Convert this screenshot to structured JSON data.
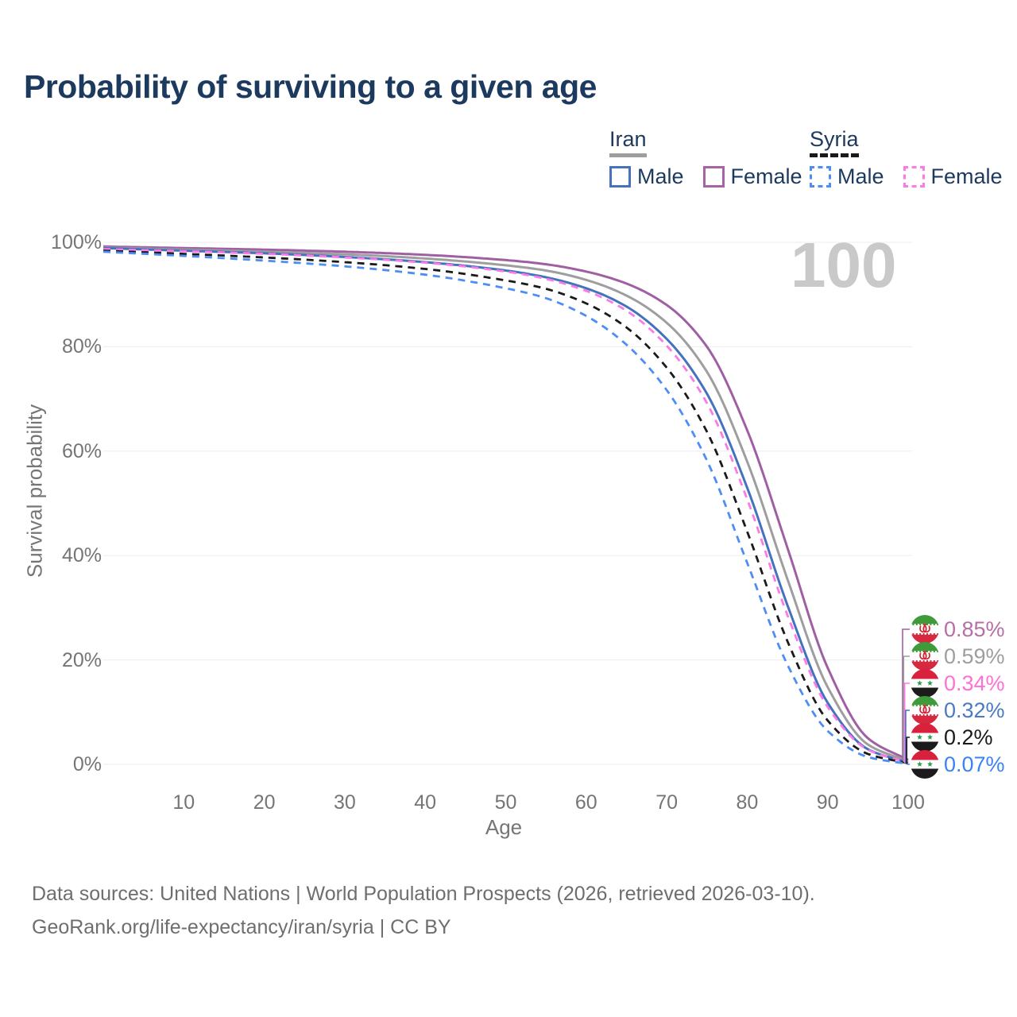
{
  "title": "Probability of surviving to a given age",
  "age_counter": {
    "text": "100"
  },
  "legend": {
    "groups": [
      {
        "label": "Iran",
        "line_color": "#9e9e9e",
        "line_style": "solid",
        "items": [
          {
            "label": "Male",
            "color": "#4472bc",
            "style": "solid"
          },
          {
            "label": "Female",
            "color": "#a763a6",
            "style": "solid"
          }
        ]
      },
      {
        "label": "Syria",
        "line_color": "#1a1a1a",
        "line_style": "dashed",
        "items": [
          {
            "label": "Male",
            "color": "#4d8df5",
            "style": "dashed"
          },
          {
            "label": "Female",
            "color": "#fc7ae6",
            "style": "dashed"
          }
        ]
      }
    ]
  },
  "axes": {
    "x_label": "Age",
    "y_label": "Survival probability",
    "x_ticks": [
      10,
      20,
      30,
      40,
      50,
      60,
      70,
      80,
      90,
      100
    ],
    "y_ticks": [
      "0%",
      "20%",
      "40%",
      "60%",
      "80%",
      "100%"
    ],
    "grid": "horizontal-only"
  },
  "chart_data": {
    "type": "line",
    "title": "Probability of surviving to a given age",
    "xlabel": "Age",
    "ylabel": "Survival probability",
    "xlim": [
      0,
      100
    ],
    "ylim": [
      0,
      100
    ],
    "legend_position": "top-right",
    "x": [
      0,
      10,
      20,
      30,
      40,
      50,
      55,
      60,
      65,
      70,
      75,
      80,
      85,
      90,
      95,
      100
    ],
    "series": [
      {
        "id": "iran-female",
        "name": "Iran Female",
        "country": "Iran",
        "sex": "Female",
        "style": "solid",
        "color": "#a05fa2",
        "label_color": "#b76ea6",
        "flag": "iran",
        "end_label": "0.85%",
        "values": [
          99.2,
          98.9,
          98.6,
          98.2,
          97.6,
          96.6,
          95.8,
          94.4,
          92.1,
          88.0,
          80.0,
          64.0,
          41.5,
          18.5,
          5.0,
          0.85
        ]
      },
      {
        "id": "iran-total",
        "name": "Iran",
        "country": "Iran",
        "sex": "Both",
        "style": "solid",
        "color": "#9e9e9e",
        "label_color": "#9e9e9e",
        "flag": "iran",
        "end_label": "0.59%",
        "values": [
          99.0,
          98.6,
          98.2,
          97.7,
          96.9,
          95.6,
          94.6,
          92.8,
          89.8,
          84.6,
          75.2,
          58.0,
          35.5,
          14.8,
          3.8,
          0.59
        ]
      },
      {
        "id": "syria-female",
        "name": "Syria Female",
        "country": "Syria",
        "sex": "Female",
        "style": "dashed",
        "color": "#fc7ae6",
        "label_color": "#ff70d5",
        "flag": "syria",
        "end_label": "0.34%",
        "values": [
          98.7,
          98.3,
          97.8,
          97.1,
          96.1,
          94.4,
          93.0,
          90.7,
          86.9,
          80.2,
          69.2,
          50.8,
          28.6,
          11.0,
          2.8,
          0.34
        ]
      },
      {
        "id": "iran-male",
        "name": "Iran Male",
        "country": "Iran",
        "sex": "Male",
        "style": "solid",
        "color": "#4472bc",
        "label_color": "#4a7ac4",
        "flag": "iran",
        "end_label": "0.32%",
        "values": [
          98.9,
          98.4,
          97.9,
          97.2,
          96.2,
          94.6,
          93.3,
          91.2,
          87.7,
          81.5,
          71.0,
          53.0,
          30.5,
          11.8,
          2.9,
          0.32
        ]
      },
      {
        "id": "syria-total",
        "name": "Syria",
        "country": "Syria",
        "sex": "Both",
        "style": "dashed",
        "color": "#1a1a1a",
        "label_color": "#1a1a1a",
        "flag": "syria",
        "end_label": "0.2%",
        "values": [
          98.4,
          97.8,
          97.1,
          96.2,
          94.9,
          92.7,
          91.1,
          88.3,
          83.7,
          76.0,
          63.7,
          44.6,
          23.6,
          8.4,
          2.0,
          0.2
        ]
      },
      {
        "id": "syria-male",
        "name": "Syria Male",
        "country": "Syria",
        "sex": "Male",
        "style": "dashed",
        "color": "#4d8df5",
        "label_color": "#3d82f2",
        "flag": "syria",
        "end_label": "0.07%",
        "values": [
          98.2,
          97.4,
          96.5,
          95.4,
          93.8,
          91.2,
          89.3,
          85.9,
          80.4,
          71.7,
          58.2,
          38.6,
          19.1,
          6.4,
          1.4,
          0.07
        ]
      }
    ]
  },
  "source": {
    "line1": "Data sources: United Nations | World Population Prospects (2026, retrieved 2026-03-10).",
    "line2": "GeoRank.org/life-expectancy/iran/syria | CC BY"
  }
}
